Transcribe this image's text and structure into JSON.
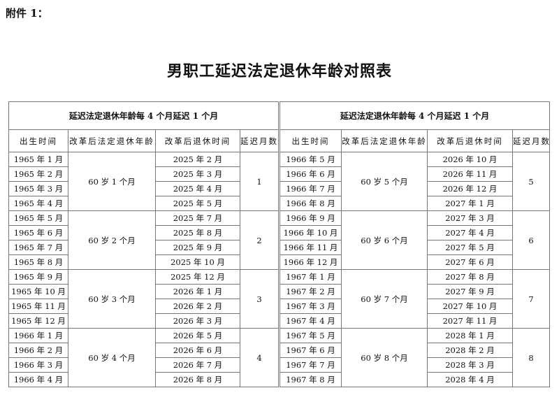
{
  "attachment_label": "附件 1：",
  "title": "男职工延迟法定退休年龄对照表",
  "tables": [
    {
      "caption": "延迟法定退休年龄每 4 个月延迟 1 个月",
      "headers": [
        "出生时间",
        "改革后法定退休年龄",
        "改革后退休时间",
        "延迟月数"
      ],
      "groups": [
        {
          "age": "60 岁 1 个月",
          "delay": "1",
          "rows": [
            [
              "1965 年 1 月",
              "2025 年 2 月"
            ],
            [
              "1965 年 2 月",
              "2025 年 3 月"
            ],
            [
              "1965 年 3 月",
              "2025 年 4 月"
            ],
            [
              "1965 年 4 月",
              "2025 年 5 月"
            ]
          ]
        },
        {
          "age": "60 岁 2 个月",
          "delay": "2",
          "rows": [
            [
              "1965 年 5 月",
              "2025 年 7 月"
            ],
            [
              "1965 年 6 月",
              "2025 年 8 月"
            ],
            [
              "1965 年 7 月",
              "2025 年 9 月"
            ],
            [
              "1965 年 8 月",
              "2025 年 10 月"
            ]
          ]
        },
        {
          "age": "60 岁 3 个月",
          "delay": "3",
          "rows": [
            [
              "1965 年 9 月",
              "2025 年 12 月"
            ],
            [
              "1965 年 10 月",
              "2026 年 1 月"
            ],
            [
              "1965 年 11 月",
              "2026 年 2 月"
            ],
            [
              "1965 年 12 月",
              "2026 年 3 月"
            ]
          ]
        },
        {
          "age": "60 岁 4 个月",
          "delay": "4",
          "rows": [
            [
              "1966 年 1 月",
              "2026 年 5 月"
            ],
            [
              "1966 年 2 月",
              "2026 年 6 月"
            ],
            [
              "1966 年 3 月",
              "2026 年 7 月"
            ],
            [
              "1966 年 4 月",
              "2026 年 8 月"
            ]
          ]
        }
      ]
    },
    {
      "caption": "延迟法定退休年龄每 4 个月延迟 1 个月",
      "headers": [
        "出生时间",
        "改革后法定退休年龄",
        "改革后退休时间",
        "延迟月数"
      ],
      "groups": [
        {
          "age": "60 岁 5 个月",
          "delay": "5",
          "rows": [
            [
              "1966 年 5 月",
              "2026 年 10 月"
            ],
            [
              "1966 年 6 月",
              "2026 年 11 月"
            ],
            [
              "1966 年 7 月",
              "2026 年 12 月"
            ],
            [
              "1966 年 8 月",
              "2027 年 1 月"
            ]
          ]
        },
        {
          "age": "60 岁 6 个月",
          "delay": "6",
          "rows": [
            [
              "1966 年 9 月",
              "2027 年 3 月"
            ],
            [
              "1966 年 10 月",
              "2027 年 4 月"
            ],
            [
              "1966 年 11 月",
              "2027 年 5 月"
            ],
            [
              "1966 年 12 月",
              "2027 年 6 月"
            ]
          ]
        },
        {
          "age": "60 岁 7 个月",
          "delay": "7",
          "rows": [
            [
              "1967 年 1 月",
              "2027 年 8 月"
            ],
            [
              "1967 年 2 月",
              "2027 年 9 月"
            ],
            [
              "1967 年 3 月",
              "2027 年 10 月"
            ],
            [
              "1967 年 4 月",
              "2027 年 11 月"
            ]
          ]
        },
        {
          "age": "60 岁 8 个月",
          "delay": "8",
          "rows": [
            [
              "1967 年 5 月",
              "2028 年 1 月"
            ],
            [
              "1967 年 6 月",
              "2028 年 2 月"
            ],
            [
              "1967 年 7 月",
              "2028 年 3 月"
            ],
            [
              "1967 年 8 月",
              "2028 年 4 月"
            ]
          ]
        }
      ]
    }
  ]
}
